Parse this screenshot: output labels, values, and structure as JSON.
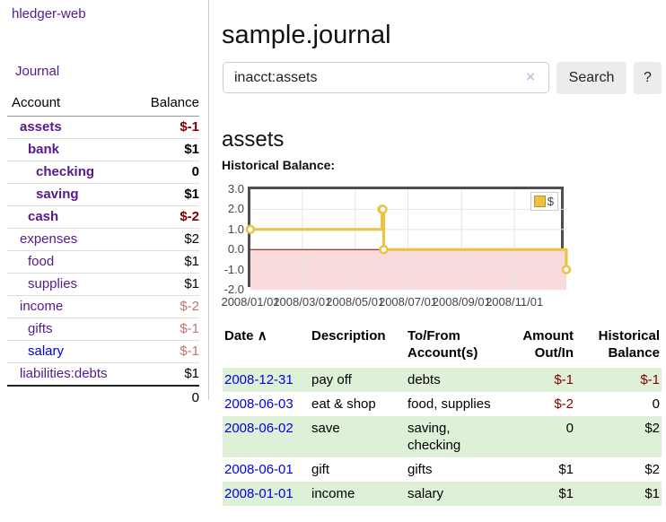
{
  "app": {
    "brand": "hledger-web",
    "nav_journal": "Journal"
  },
  "header": {
    "title": "sample.journal"
  },
  "search": {
    "value": "inacct:assets",
    "clear_icon": "×",
    "button": "Search",
    "help_button": "?"
  },
  "sidebar": {
    "header": {
      "account": "Account",
      "balance": "Balance"
    },
    "accounts": [
      {
        "name": "assets",
        "depth": 1,
        "bold": true,
        "balance": "$-1",
        "balance_style": "neg"
      },
      {
        "name": "bank",
        "depth": 2,
        "bold": true,
        "balance": "$1",
        "balance_style": "pos"
      },
      {
        "name": "checking",
        "depth": 3,
        "bold": true,
        "balance": "0",
        "balance_style": "pos"
      },
      {
        "name": "saving",
        "depth": 3,
        "bold": true,
        "balance": "$1",
        "balance_style": "pos"
      },
      {
        "name": "cash",
        "depth": 2,
        "bold": true,
        "balance": "$-2",
        "balance_style": "neg"
      },
      {
        "name": "expenses",
        "depth": 1,
        "bold": false,
        "balance": "$2",
        "balance_style": "pos"
      },
      {
        "name": "food",
        "depth": 2,
        "bold": false,
        "balance": "$1",
        "balance_style": "pos"
      },
      {
        "name": "supplies",
        "depth": 2,
        "bold": false,
        "balance": "$1",
        "balance_style": "pos"
      },
      {
        "name": "income",
        "depth": 1,
        "bold": false,
        "balance": "$-2",
        "balance_style": "dim-neg"
      },
      {
        "name": "gifts",
        "depth": 2,
        "bold": false,
        "balance": "$-1",
        "balance_style": "dim-neg"
      },
      {
        "name": "salary",
        "depth": 2,
        "bold": false,
        "balance": "$-1",
        "balance_style": "dim-neg",
        "link_color": "blue"
      },
      {
        "name": "liabilities:debts",
        "depth": 1,
        "bold": false,
        "balance": "$1",
        "balance_style": "pos"
      }
    ],
    "total": "0"
  },
  "main": {
    "account_heading": "assets",
    "chart_label": "Historical Balance:"
  },
  "chart_data": {
    "type": "line",
    "title": "Historical Balance",
    "step": true,
    "series": [
      {
        "name": "$",
        "points": [
          [
            "2008-01-01",
            1
          ],
          [
            "2008-06-01",
            2
          ],
          [
            "2008-06-02",
            2
          ],
          [
            "2008-06-03",
            0
          ],
          [
            "2008-12-31",
            -1
          ]
        ]
      }
    ],
    "x_range": [
      "2008-01-01",
      "2008-12-31"
    ],
    "y_range": [
      -2,
      3
    ],
    "y_ticks": [
      "3.0",
      "2.0",
      "1.0",
      "0.0",
      "-1.0",
      "-2.0"
    ],
    "x_ticks": [
      "2008/01/01",
      "2008/03/01",
      "2008/05/01",
      "2008/07/01",
      "2008/09/01",
      "2008/11/01"
    ],
    "legend": "$",
    "legend_position": "top-right",
    "grid": true,
    "colors": {
      "line": "#edc240",
      "negative_fill": "#f9dada",
      "zero_line": "#8b0000",
      "grid": "#e6e6e6",
      "border": "#4e4e4e"
    }
  },
  "register": {
    "sort_icon": "∧",
    "columns": {
      "date": "Date",
      "description": "Description",
      "account": "To/From\nAccount(s)",
      "amount": "Amount\nOut/In",
      "balance": "Historical\nBalance"
    },
    "rows": [
      {
        "date": "2008-12-31",
        "description": "pay off",
        "account": "debts",
        "amount": "$-1",
        "amount_neg": true,
        "balance": "$-1",
        "balance_neg": true
      },
      {
        "date": "2008-06-03",
        "description": "eat & shop",
        "account": "food, supplies",
        "amount": "$-2",
        "amount_neg": true,
        "balance": "0",
        "balance_neg": false
      },
      {
        "date": "2008-06-02",
        "description": "save",
        "account": "saving,\nchecking",
        "amount": "0",
        "amount_neg": false,
        "balance": "$2",
        "balance_neg": false
      },
      {
        "date": "2008-06-01",
        "description": "gift",
        "account": "gifts",
        "amount": "$1",
        "amount_neg": false,
        "balance": "$2",
        "balance_neg": false
      },
      {
        "date": "2008-01-01",
        "description": "income",
        "account": "salary",
        "amount": "$1",
        "amount_neg": false,
        "balance": "$1",
        "balance_neg": false
      }
    ]
  }
}
